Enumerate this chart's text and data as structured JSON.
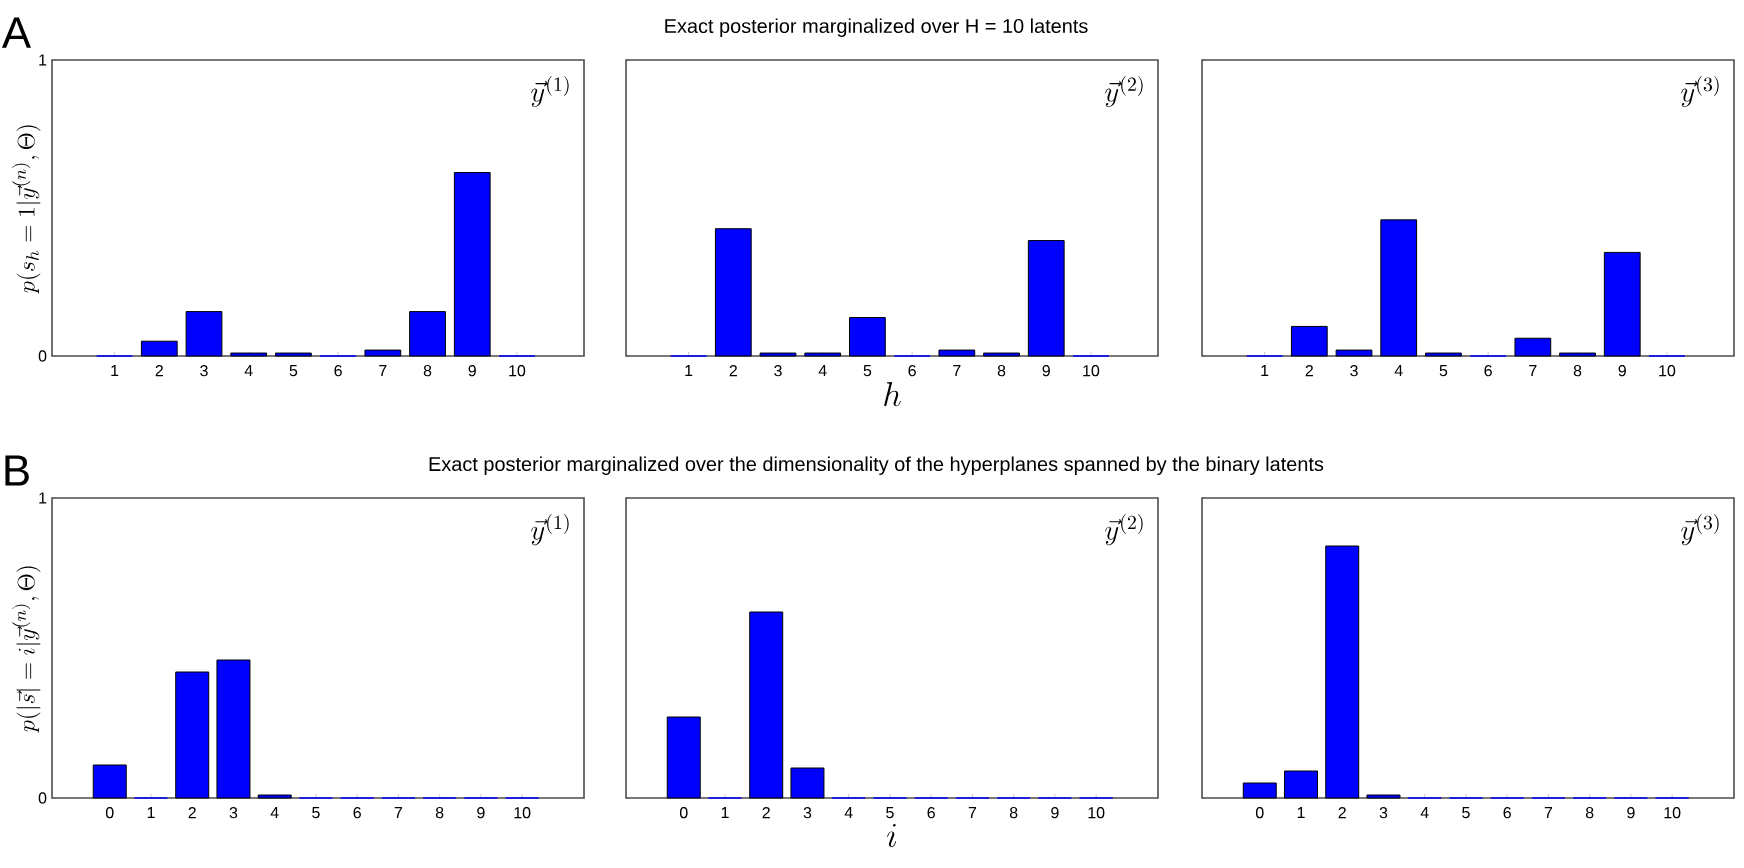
{
  "chart_data": [
    {
      "type": "bar",
      "ylabel": "p(s_h = 1|\\vec{y}^{(n)}, \\Theta)",
      "categories": [
        "1",
        "2",
        "3",
        "4",
        "5",
        "6",
        "7",
        "8",
        "9",
        "10"
      ],
      "values": [
        0,
        0.05,
        0.15,
        0.01,
        0.01,
        0,
        0.02,
        0.15,
        0.62,
        0
      ],
      "color": "#0000ff",
      "ylim": [
        0,
        1
      ],
      "yticks": [
        0,
        1
      ],
      "annotations": [
        "A",
        "\\vec{y}^{(1)}"
      ]
    },
    {
      "type": "bar",
      "title": "Exact posterior marginalized over H = 10 latents",
      "xlabel": "h",
      "categories": [
        "1",
        "2",
        "3",
        "4",
        "5",
        "6",
        "7",
        "8",
        "9",
        "10"
      ],
      "values": [
        0,
        0.43,
        0.01,
        0.01,
        0.13,
        0,
        0.02,
        0.01,
        0.39,
        0
      ],
      "color": "#0000ff",
      "ylim": [
        0,
        1
      ],
      "yticks": [
        0,
        1
      ],
      "tick_labels": "x",
      "annotations": [
        "\\vec{y}^{(2)}"
      ]
    },
    {
      "type": "bar",
      "categories": [
        "1",
        "2",
        "3",
        "4",
        "5",
        "6",
        "7",
        "8",
        "9",
        "10"
      ],
      "values": [
        0,
        0.1,
        0.02,
        0.46,
        0.01,
        0,
        0.06,
        0.01,
        0.35,
        0
      ],
      "color": "#0000ff",
      "ylim": [
        0,
        1
      ],
      "yticks": [
        0,
        1
      ],
      "tick_labels": "x",
      "annotations": [
        "\\vec{y}^{(3)}"
      ]
    },
    {
      "type": "bar",
      "ylabel": "p(|\\vec{s}| = i|\\vec{y}^{(n)}, \\Theta)",
      "categories": [
        "0",
        "1",
        "2",
        "3",
        "4",
        "5",
        "6",
        "7",
        "8",
        "9",
        "10"
      ],
      "values": [
        0.11,
        0,
        0.42,
        0.46,
        0.01,
        0,
        0,
        0,
        0,
        0,
        0
      ],
      "color": "#0000ff",
      "ylim": [
        0,
        1
      ],
      "yticks": [
        0,
        1
      ],
      "annotations": [
        "B",
        "\\vec{y}^{(1)}"
      ]
    },
    {
      "type": "bar",
      "title": "Exact posterior marginalized over the dimensionality of the hyperplanes spanned by the binary latents",
      "xlabel": "i",
      "categories": [
        "0",
        "1",
        "2",
        "3",
        "4",
        "5",
        "6",
        "7",
        "8",
        "9",
        "10"
      ],
      "values": [
        0.27,
        0,
        0.62,
        0.1,
        0,
        0,
        0,
        0,
        0,
        0,
        0
      ],
      "color": "#0000ff",
      "ylim": [
        0,
        1
      ],
      "yticks": [
        0,
        1
      ],
      "tick_labels": "x",
      "annotations": [
        "\\vec{y}^{(2)}"
      ]
    },
    {
      "type": "bar",
      "categories": [
        "0",
        "1",
        "2",
        "3",
        "4",
        "5",
        "6",
        "7",
        "8",
        "9",
        "10"
      ],
      "values": [
        0.05,
        0.09,
        0.84,
        0.01,
        0,
        0,
        0,
        0,
        0,
        0,
        0
      ],
      "color": "#0000ff",
      "ylim": [
        0,
        1
      ],
      "yticks": [
        0,
        1
      ],
      "tick_labels": "x",
      "annotations": [
        "\\vec{y}^{(3)}"
      ]
    }
  ]
}
